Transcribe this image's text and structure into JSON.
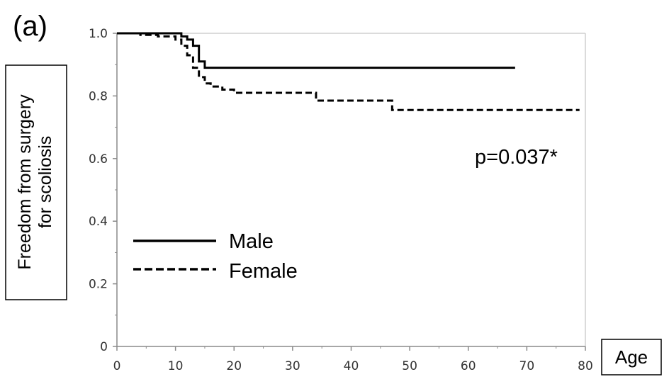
{
  "panel_label": "(a)",
  "annotation": "p=0.037*",
  "chart_data": {
    "type": "line",
    "step": true,
    "xlabel": "Age",
    "ylabel": [
      "Freedom from surgery",
      "for scoliosis"
    ],
    "xlim": [
      0,
      80
    ],
    "ylim": [
      0,
      1.0
    ],
    "x_ticks": [
      0,
      10,
      20,
      30,
      40,
      50,
      60,
      70,
      80
    ],
    "x_tick_labels": [
      "0",
      "10",
      "20",
      "30",
      "40",
      "50",
      "60",
      "70",
      "80"
    ],
    "y_ticks": [
      0,
      0.2,
      0.4,
      0.6,
      0.8,
      1.0
    ],
    "y_tick_labels": [
      "0",
      "0.2",
      "0.4",
      "0.6",
      "0.8",
      "1.0"
    ],
    "grid": false,
    "legend_position": "lower-left",
    "series": [
      {
        "name": "Male",
        "line_style": "solid",
        "color": "#000000",
        "x": [
          0,
          11,
          12,
          13,
          14,
          15,
          68
        ],
        "y": [
          1.0,
          0.99,
          0.98,
          0.96,
          0.91,
          0.89,
          0.89
        ]
      },
      {
        "name": "Female",
        "line_style": "dashed",
        "color": "#000000",
        "x": [
          0,
          4,
          7,
          10,
          11,
          12,
          13,
          14,
          15,
          16,
          18,
          20,
          34,
          47,
          79
        ],
        "y": [
          1.0,
          0.995,
          0.99,
          0.98,
          0.96,
          0.93,
          0.89,
          0.86,
          0.84,
          0.83,
          0.82,
          0.81,
          0.785,
          0.755,
          0.755
        ]
      }
    ]
  }
}
